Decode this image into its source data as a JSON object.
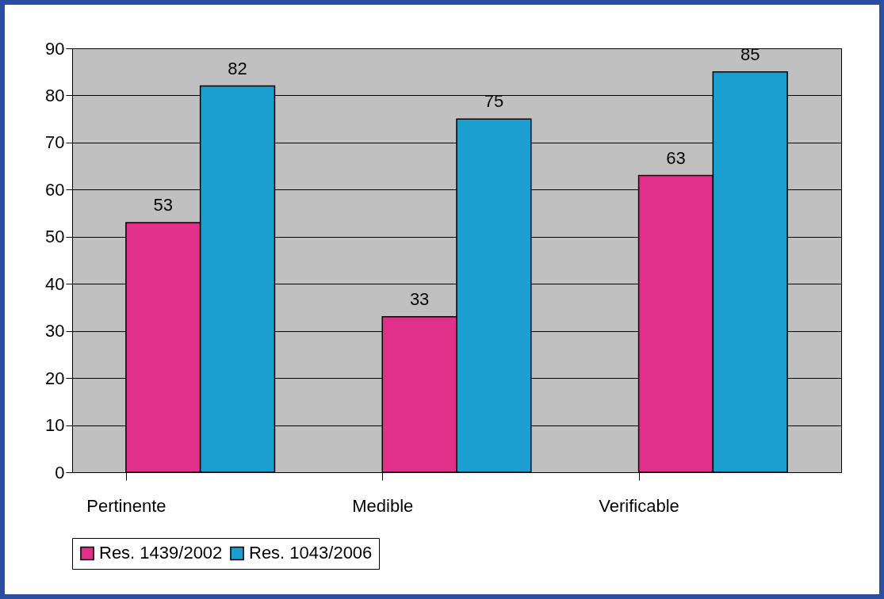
{
  "chart_data": {
    "type": "bar",
    "categories": [
      "Pertinente",
      "Medible",
      "Verificable"
    ],
    "series": [
      {
        "name": "Res. 1439/2002",
        "color": "#e0308a",
        "values": [
          53,
          33,
          63
        ]
      },
      {
        "name": "Res. 1043/2006",
        "color": "#1a9fd0",
        "values": [
          82,
          75,
          85
        ]
      }
    ],
    "ylim": [
      0,
      90
    ],
    "yticks": [
      0,
      10,
      20,
      30,
      40,
      50,
      60,
      70,
      80,
      90
    ],
    "grid": "y",
    "legend": "bottom",
    "data_labels": true
  }
}
